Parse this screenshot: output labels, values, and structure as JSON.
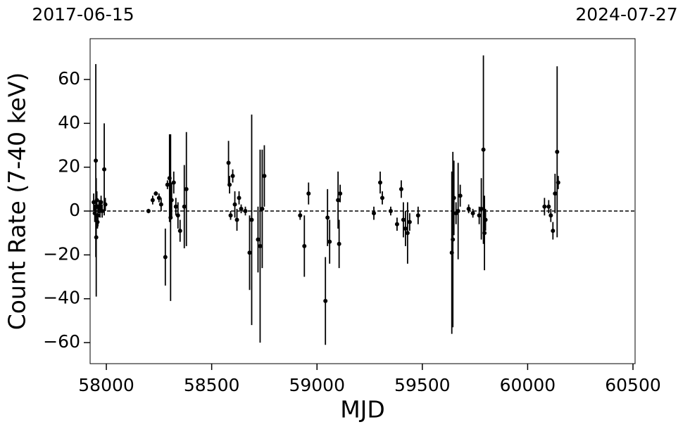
{
  "chart_data": {
    "type": "scatter",
    "top_left_label": "2017-06-15",
    "top_right_label": "2024-07-27",
    "xlabel": "MJD",
    "ylabel": "Count Rate (7-40 keV)",
    "x": [
      57940,
      57945,
      57950,
      57952,
      57955,
      57958,
      57960,
      57965,
      57970,
      57975,
      57980,
      57990,
      57995,
      58200,
      58220,
      58235,
      58250,
      58260,
      58280,
      58290,
      58300,
      58305,
      58310,
      58320,
      58330,
      58340,
      58350,
      58370,
      58380,
      58580,
      58585,
      58590,
      58600,
      58610,
      58620,
      58630,
      58640,
      58660,
      58680,
      58690,
      58720,
      58730,
      58740,
      58750,
      58920,
      58940,
      58960,
      59040,
      59050,
      59060,
      59100,
      59105,
      59110,
      59270,
      59300,
      59310,
      59350,
      59380,
      59400,
      59410,
      59420,
      59430,
      59440,
      59480,
      59640,
      59645,
      59650,
      59660,
      59670,
      59680,
      59720,
      59740,
      59770,
      59780,
      59790,
      59795,
      59800,
      60080,
      60100,
      60110,
      60120,
      60130,
      60140,
      60145
    ],
    "values": [
      4,
      -1,
      23,
      -12,
      5,
      -5,
      -2,
      2,
      1,
      4,
      0,
      19,
      3,
      0,
      5,
      8,
      6,
      3,
      -21,
      12,
      15,
      -3,
      5,
      13,
      2,
      -2,
      -9,
      2,
      10,
      22,
      12,
      -2,
      16,
      3,
      -4,
      6,
      1,
      0,
      -19,
      -4,
      -13,
      -16,
      1,
      16,
      -2,
      -16,
      8,
      -41,
      -3,
      -14,
      5,
      -15,
      8,
      -1,
      13,
      6,
      0,
      -6,
      10,
      -4,
      -8,
      -10,
      -5,
      -2,
      -19,
      -13,
      6,
      -1,
      0,
      7,
      1,
      -1,
      -2,
      1,
      28,
      -10,
      -4,
      2,
      2,
      -2,
      -9,
      8,
      27,
      13
    ],
    "errors": [
      4,
      4,
      44,
      27,
      4,
      3,
      5,
      3,
      4,
      3,
      3,
      21,
      3,
      1,
      2,
      1,
      2,
      3,
      13,
      2,
      20,
      38,
      8,
      5,
      4,
      6,
      5,
      19,
      26,
      10,
      4,
      2,
      3,
      6,
      5,
      3,
      2,
      2,
      17,
      48,
      15,
      44,
      27,
      14,
      2,
      14,
      5,
      20,
      13,
      10,
      13,
      11,
      4,
      3,
      5,
      3,
      2,
      3,
      4,
      8,
      8,
      14,
      4,
      4,
      37,
      40,
      17,
      5,
      22,
      5,
      2,
      2,
      4,
      14,
      43,
      17,
      5,
      4,
      3,
      3,
      4,
      9,
      39,
      3
    ],
    "color": "#000000",
    "hline": 0,
    "xlim": [
      57923,
      60510
    ],
    "ylim": [
      -69.6,
      78.6
    ],
    "xticks": [
      58000,
      58500,
      59000,
      59500,
      60000,
      60500
    ],
    "yticks": [
      {
        "value": -60,
        "label": "−60"
      },
      {
        "value": -40,
        "label": "−40"
      },
      {
        "value": -20,
        "label": "−20"
      },
      0,
      20,
      40,
      60
    ]
  }
}
